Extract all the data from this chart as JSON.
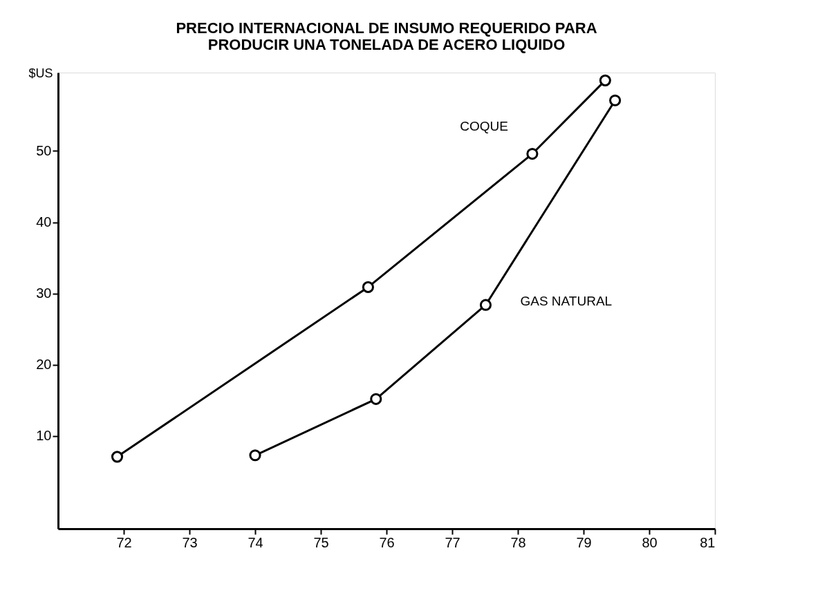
{
  "chart_data": {
    "type": "line",
    "title": "PRECIO INTERNACIONAL DE INSUMO REQUERIDO PARA\nPRODUCIR UNA TONELADA DE ACERO LIQUIDO",
    "ylabel": "$US",
    "series": [
      {
        "name": "COQUE",
        "color": "#000000",
        "x": [
          71.9,
          75.72,
          78.22,
          79.33
        ],
        "values": [
          7.1,
          30.9,
          49.6,
          59.9
        ]
      },
      {
        "name": "GAS NATURAL",
        "color": "#000000",
        "x": [
          74.0,
          75.84,
          77.51,
          79.48
        ],
        "values": [
          7.3,
          15.2,
          28.4,
          57.1
        ]
      }
    ],
    "xlim": [
      71,
      81
    ],
    "xticks": [
      72,
      73,
      74,
      75,
      76,
      77,
      78,
      79,
      80,
      81
    ],
    "ylim": [
      -3,
      61
    ],
    "yticks": [
      10,
      20,
      30,
      40,
      50
    ],
    "grid": false,
    "legend": false,
    "marker": "circle",
    "line_style": "solid"
  }
}
